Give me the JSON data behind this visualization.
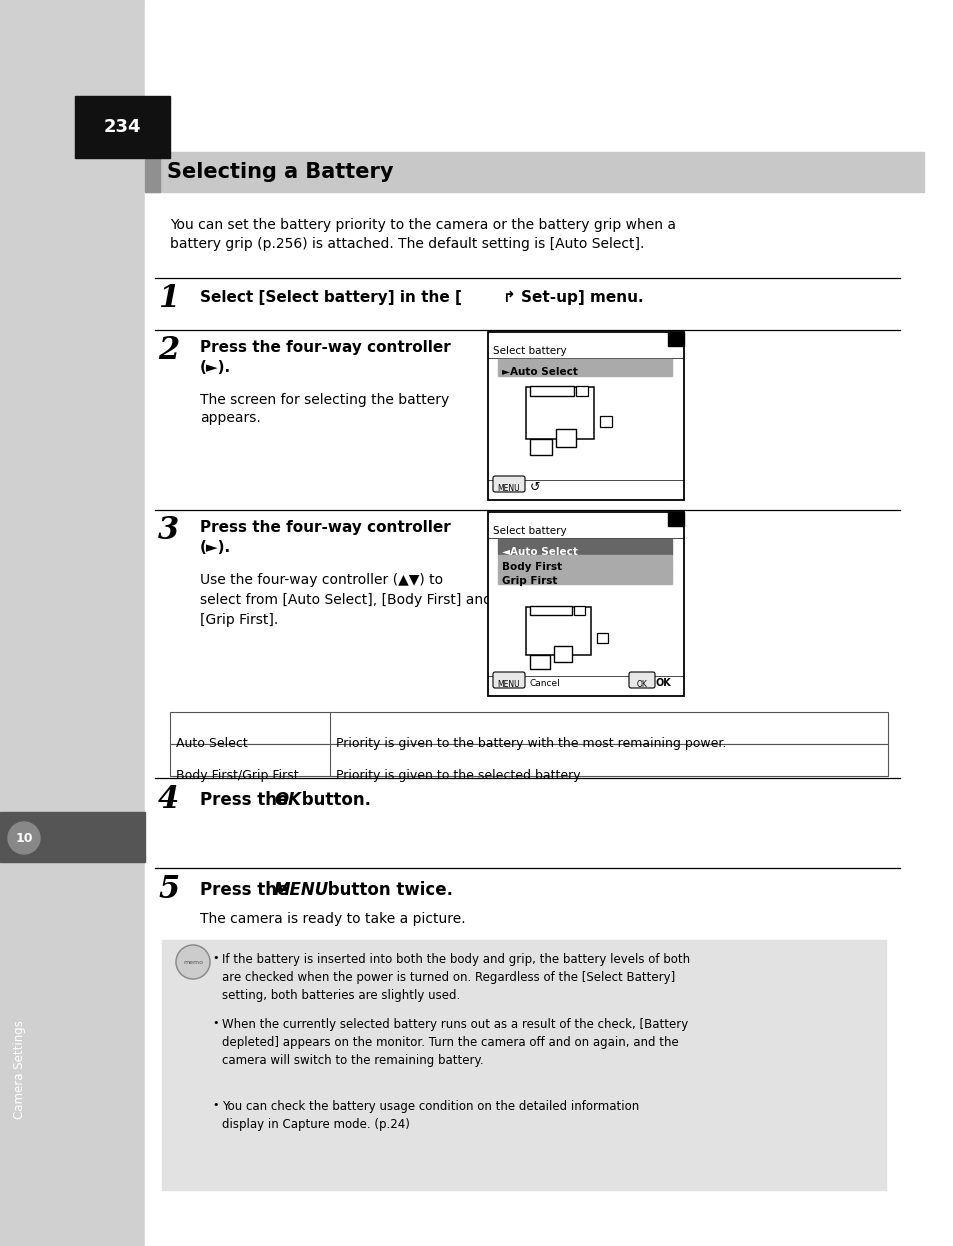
{
  "page_number": "234",
  "title": "Selecting a Battery",
  "intro1": "You can set the battery priority to the camera or the battery grip when a",
  "intro2": "battery grip (p.256) is attached. The default setting is [Auto Select].",
  "s1_num": "1",
  "s1_text": "Select [Select battery] in the [⩜ Set-up] menu.",
  "s2_num": "2",
  "s2_bold1": "Press the four-way controller",
  "s2_bold2": "(►).",
  "s2_norm1": "The screen for selecting the battery",
  "s2_norm2": "appears.",
  "s3_num": "3",
  "s3_bold1": "Press the four-way controller",
  "s3_bold2": "(►).",
  "s3_norm": "Use the four-way controller (▲▼) to\nselect from [Auto Select], [Body First] and\n[Grip First].",
  "tbl_r1c1": "Auto Select",
  "tbl_r1c2": "Priority is given to the battery with the most remaining power.",
  "tbl_r2c1": "Body First/Grip First",
  "tbl_r2c2": "Priority is given to the selected battery.",
  "s4_num": "4",
  "s4_pre": "Press the ",
  "s4_bold": "OK",
  "s4_post": " button.",
  "s5_num": "5",
  "s5_pre": "Press the ",
  "s5_bold": "MENU",
  "s5_post": " button twice.",
  "s5_sub": "The camera is ready to take a picture.",
  "memo1": "If the battery is inserted into both the body and grip, the battery levels of both\nare checked when the power is turned on. Regardless of the [Select Battery]\nsetting, both batteries are slightly used.",
  "memo2": "When the currently selected battery runs out as a result of the check, [Battery\ndepleted] appears on the monitor. Turn the camera off and on again, and the\ncamera will switch to the remaining battery.",
  "memo3": "You can check the battery usage condition on the detailed information\ndisplay in Capture mode. (p.24)",
  "white": "#ffffff",
  "black": "#000000",
  "sidebar_gray": "#d0d0d0",
  "dark_gray": "#555555",
  "page_bg": "#111111",
  "memo_bg": "#e2e2e2",
  "sel_dark": "#666666",
  "sel_mid": "#aaaaaa",
  "title_bar": "#c8c8c8"
}
